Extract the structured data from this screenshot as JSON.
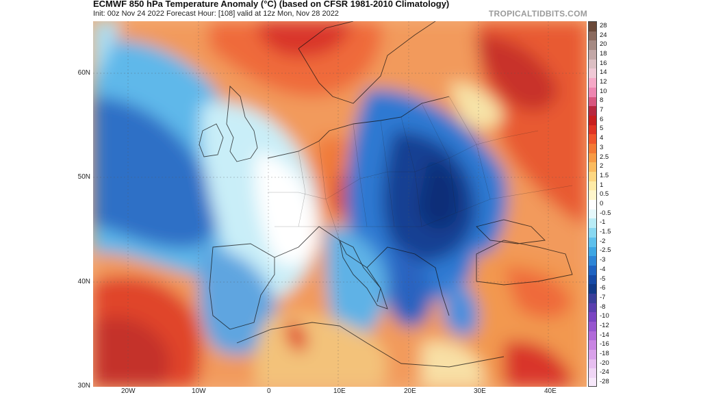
{
  "header": {
    "title": "ECMWF 850 hPa Temperature Anomaly (°C) (based on CFSR 1981-2010 Climatology)",
    "subtitle": "Init: 00z Nov 24 2022   Forecast Hour: [108]   valid at 12z Mon, Nov 28 2022",
    "brand": "TROPICALTIDBITS.COM"
  },
  "map": {
    "lat_labels": [
      "60N",
      "50N",
      "40N",
      "30N"
    ],
    "lon_labels": [
      "20W",
      "10W",
      "0",
      "10E",
      "20E",
      "30E",
      "40E"
    ]
  },
  "colorbar": {
    "labels": [
      "28",
      "24",
      "20",
      "18",
      "16",
      "14",
      "12",
      "10",
      "8",
      "7",
      "6",
      "5",
      "4",
      "3",
      "2.5",
      "2",
      "1.5",
      "1",
      "0.5",
      "0",
      "-0.5",
      "-1",
      "-1.5",
      "-2",
      "-2.5",
      "-3",
      "-4",
      "-5",
      "-6",
      "-7",
      "-8",
      "-10",
      "-12",
      "-14",
      "-16",
      "-18",
      "-20",
      "-24",
      "-28"
    ],
    "colors": [
      "#6b4a3a",
      "#8a6a5e",
      "#a58a83",
      "#c2a7a6",
      "#dcbfc3",
      "#f0c9d6",
      "#f6a9c7",
      "#ee86b0",
      "#d8577f",
      "#b8283f",
      "#c81f1f",
      "#e03424",
      "#f0562c",
      "#f47a35",
      "#f89b45",
      "#fbbb5f",
      "#fdd782",
      "#feeba7",
      "#fff6cc",
      "#ffffff",
      "#e6f8fb",
      "#b9ecf6",
      "#89d8f1",
      "#5ec0ec",
      "#3ea6e3",
      "#2d85d6",
      "#1f63c1",
      "#164aa6",
      "#123a88",
      "#3a3f9a",
      "#5a3fae",
      "#7a45c2",
      "#9656cf",
      "#b06ad9",
      "#c885e2",
      "#d9a2ea",
      "#e7bff0",
      "#f0d6f5",
      "#f7e8fa"
    ]
  }
}
